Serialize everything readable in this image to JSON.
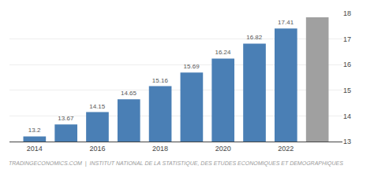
{
  "chart_data": {
    "type": "bar",
    "x": [
      2014,
      2015,
      2016,
      2017,
      2018,
      2019,
      2020,
      2021,
      2022,
      2023
    ],
    "values": [
      13.2,
      13.67,
      14.15,
      14.65,
      15.16,
      15.69,
      16.24,
      16.82,
      17.41,
      17.85
    ],
    "colors": [
      "#4a7fb5",
      "#4a7fb5",
      "#4a7fb5",
      "#4a7fb5",
      "#4a7fb5",
      "#4a7fb5",
      "#4a7fb5",
      "#4a7fb5",
      "#4a7fb5",
      "#a0a0a0"
    ],
    "data_labels": true,
    "value_labels": [
      "13.2",
      "13.67",
      "14.15",
      "14.65",
      "15.16",
      "15.69",
      "16.24",
      "16.82",
      "17.41",
      null
    ],
    "xlim": [
      2013.2,
      2023.8
    ],
    "xticks": [
      2014,
      2016,
      2018,
      2020,
      2022
    ],
    "ylim": [
      13,
      18
    ],
    "yticks": [
      13,
      14,
      15,
      16,
      17,
      18
    ],
    "grid": true,
    "annotations": [
      "TRADINGECONOMICS.COM  |  INSTITUT NATIONAL DE LA STATISTIQUE, DES ETUDES ECONOMIQUES ET DEMOGRAPHIQUES"
    ]
  }
}
